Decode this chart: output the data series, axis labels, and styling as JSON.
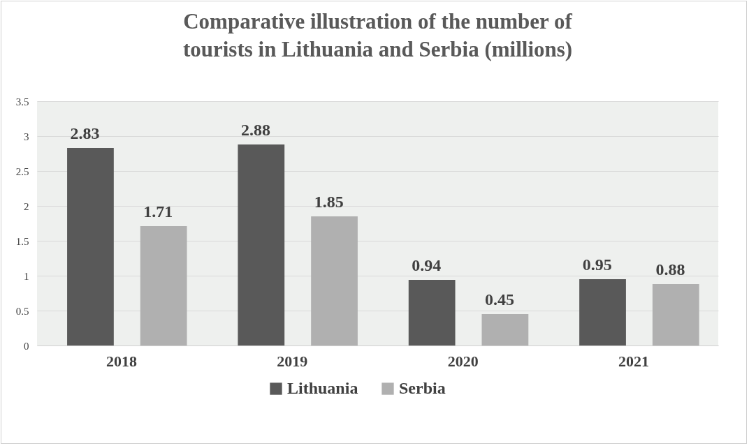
{
  "chart_data": {
    "type": "bar",
    "title": "Comparative illustration of the number of tourists in Lithuania and Serbia (millions)",
    "categories": [
      "2018",
      "2019",
      "2020",
      "2021"
    ],
    "series": [
      {
        "name": "Lithuania",
        "color": "#595959",
        "values": [
          2.83,
          2.88,
          0.94,
          0.95
        ]
      },
      {
        "name": "Serbia",
        "color": "#b0b0b0",
        "values": [
          1.71,
          1.85,
          0.45,
          0.88
        ]
      }
    ],
    "ylim": [
      0,
      3.5
    ],
    "yticks": [
      0,
      0.5,
      1,
      1.5,
      2,
      2.5,
      3,
      3.5
    ],
    "grid": "y",
    "legend": "bottom",
    "data_labels": true
  }
}
